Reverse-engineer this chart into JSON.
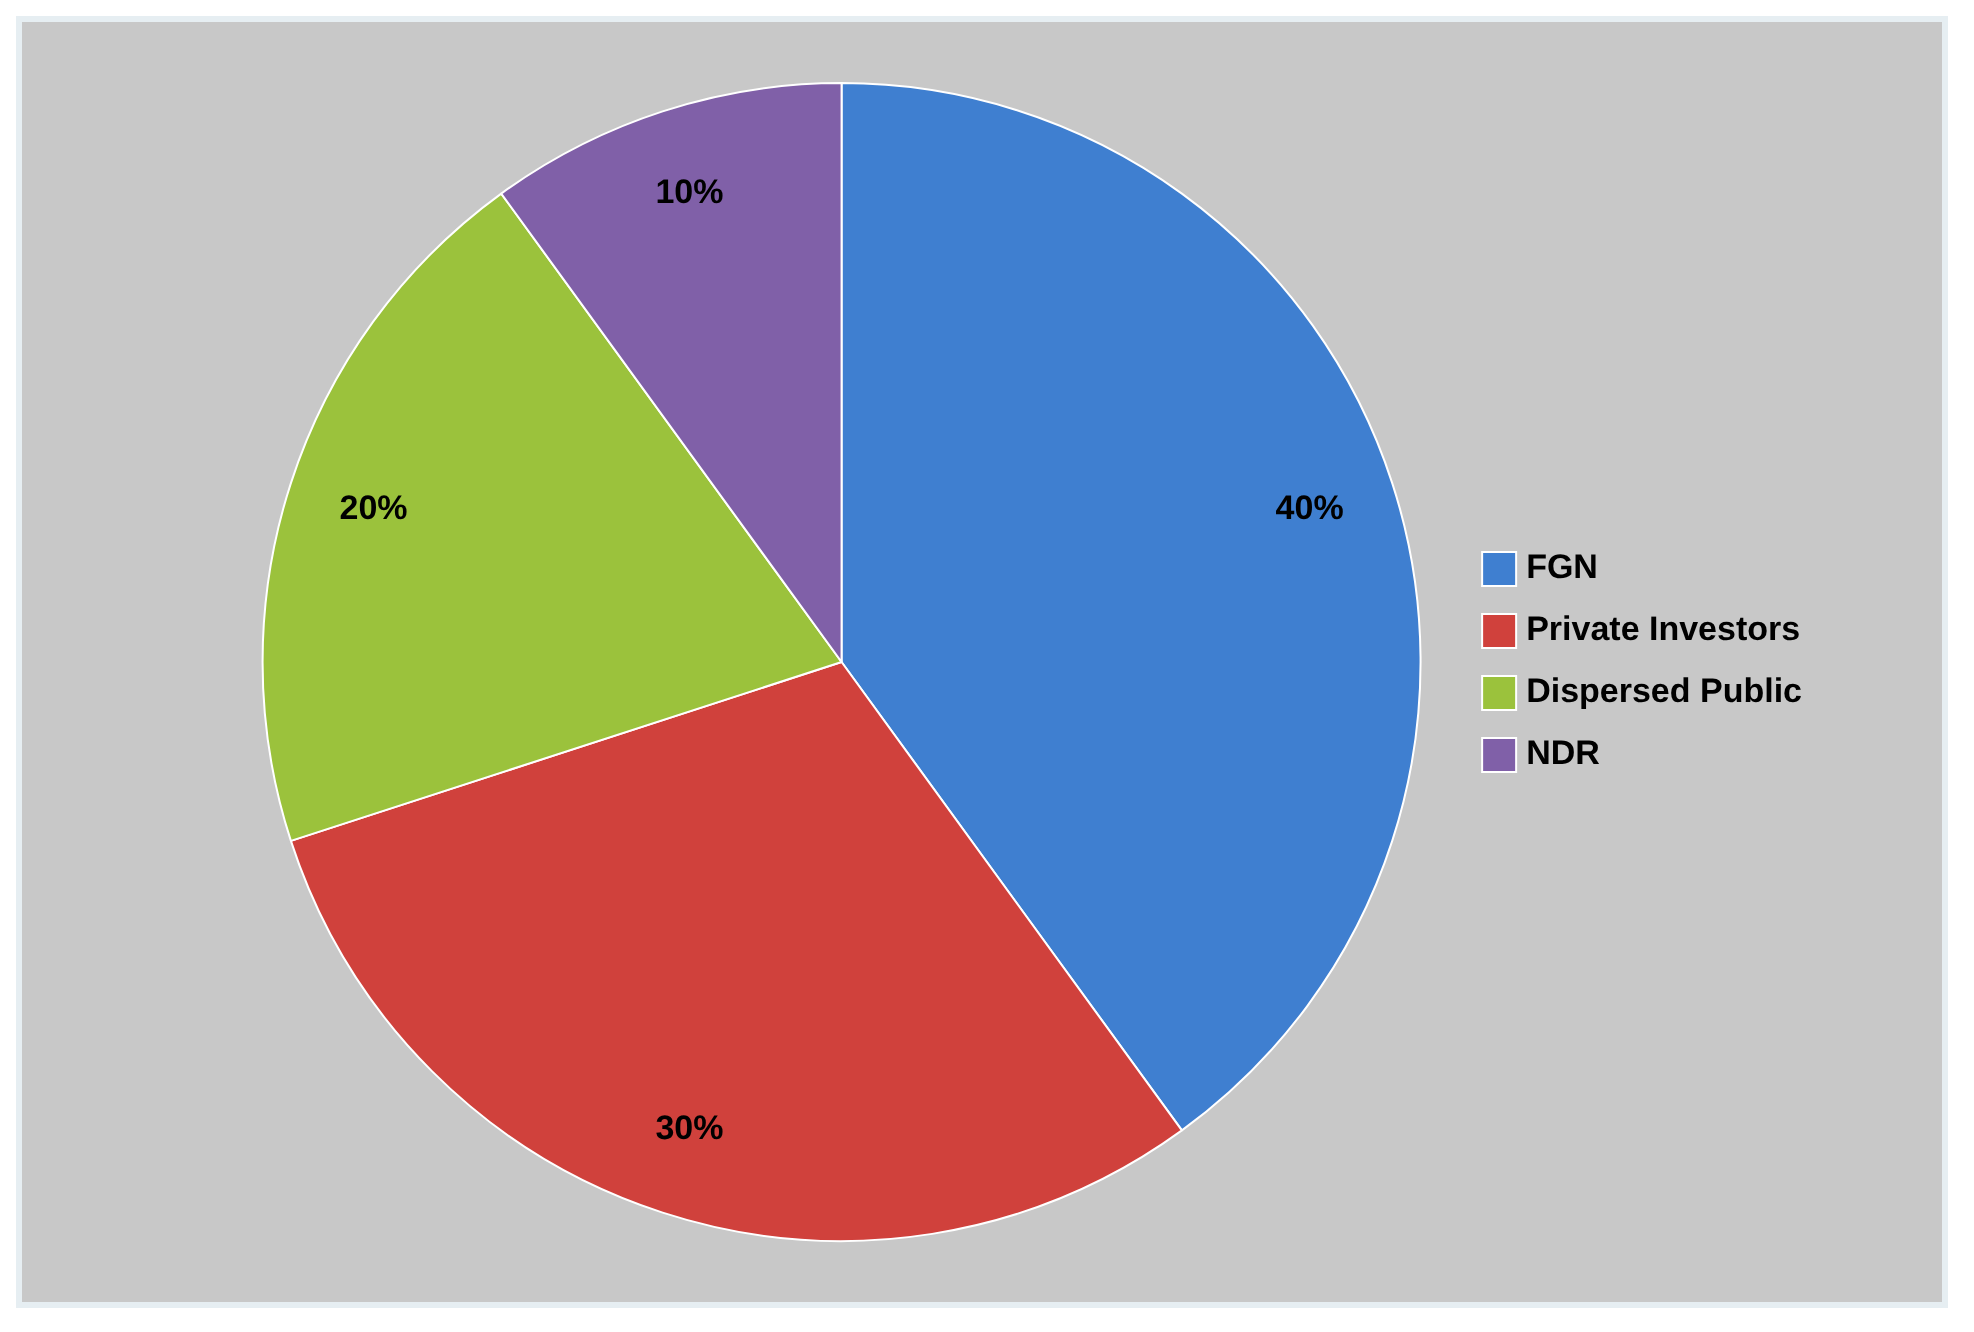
{
  "chart_data": {
    "type": "pie",
    "categories": [
      "FGN",
      "Private Investors",
      "Dispersed Public",
      "NDR"
    ],
    "values": [
      40,
      30,
      20,
      10
    ],
    "colors": [
      "#3f7fd0",
      "#d0413c",
      "#9bc23c",
      "#8060a8"
    ],
    "value_labels": [
      "40%",
      "30%",
      "20%",
      "10%"
    ],
    "legend": "right"
  }
}
